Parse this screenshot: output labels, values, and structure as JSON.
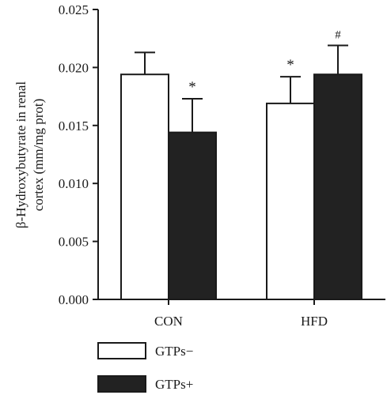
{
  "chart_data": {
    "type": "bar",
    "ylabel_line1": "β-Hydroxybutyrate in renal",
    "ylabel_line2": "cortex (mm/mg prot)",
    "xlabel": "",
    "ylim": [
      0,
      0.025
    ],
    "yticks": [
      "0.000",
      "0.005",
      "0.010",
      "0.015",
      "0.020",
      "0.025"
    ],
    "categories": [
      "CON",
      "HFD"
    ],
    "series": [
      {
        "name": "GTPs−",
        "color": "#ffffff",
        "values": [
          0.0194,
          0.0169
        ],
        "errors": [
          0.0019,
          0.0023
        ],
        "marks": [
          "",
          "*"
        ]
      },
      {
        "name": "GTPs+",
        "color": "#222222",
        "values": [
          0.0144,
          0.0194
        ],
        "errors": [
          0.0029,
          0.0025
        ],
        "marks": [
          "*",
          "#"
        ]
      }
    ],
    "legend_position": "bottom-left",
    "grid": false
  }
}
